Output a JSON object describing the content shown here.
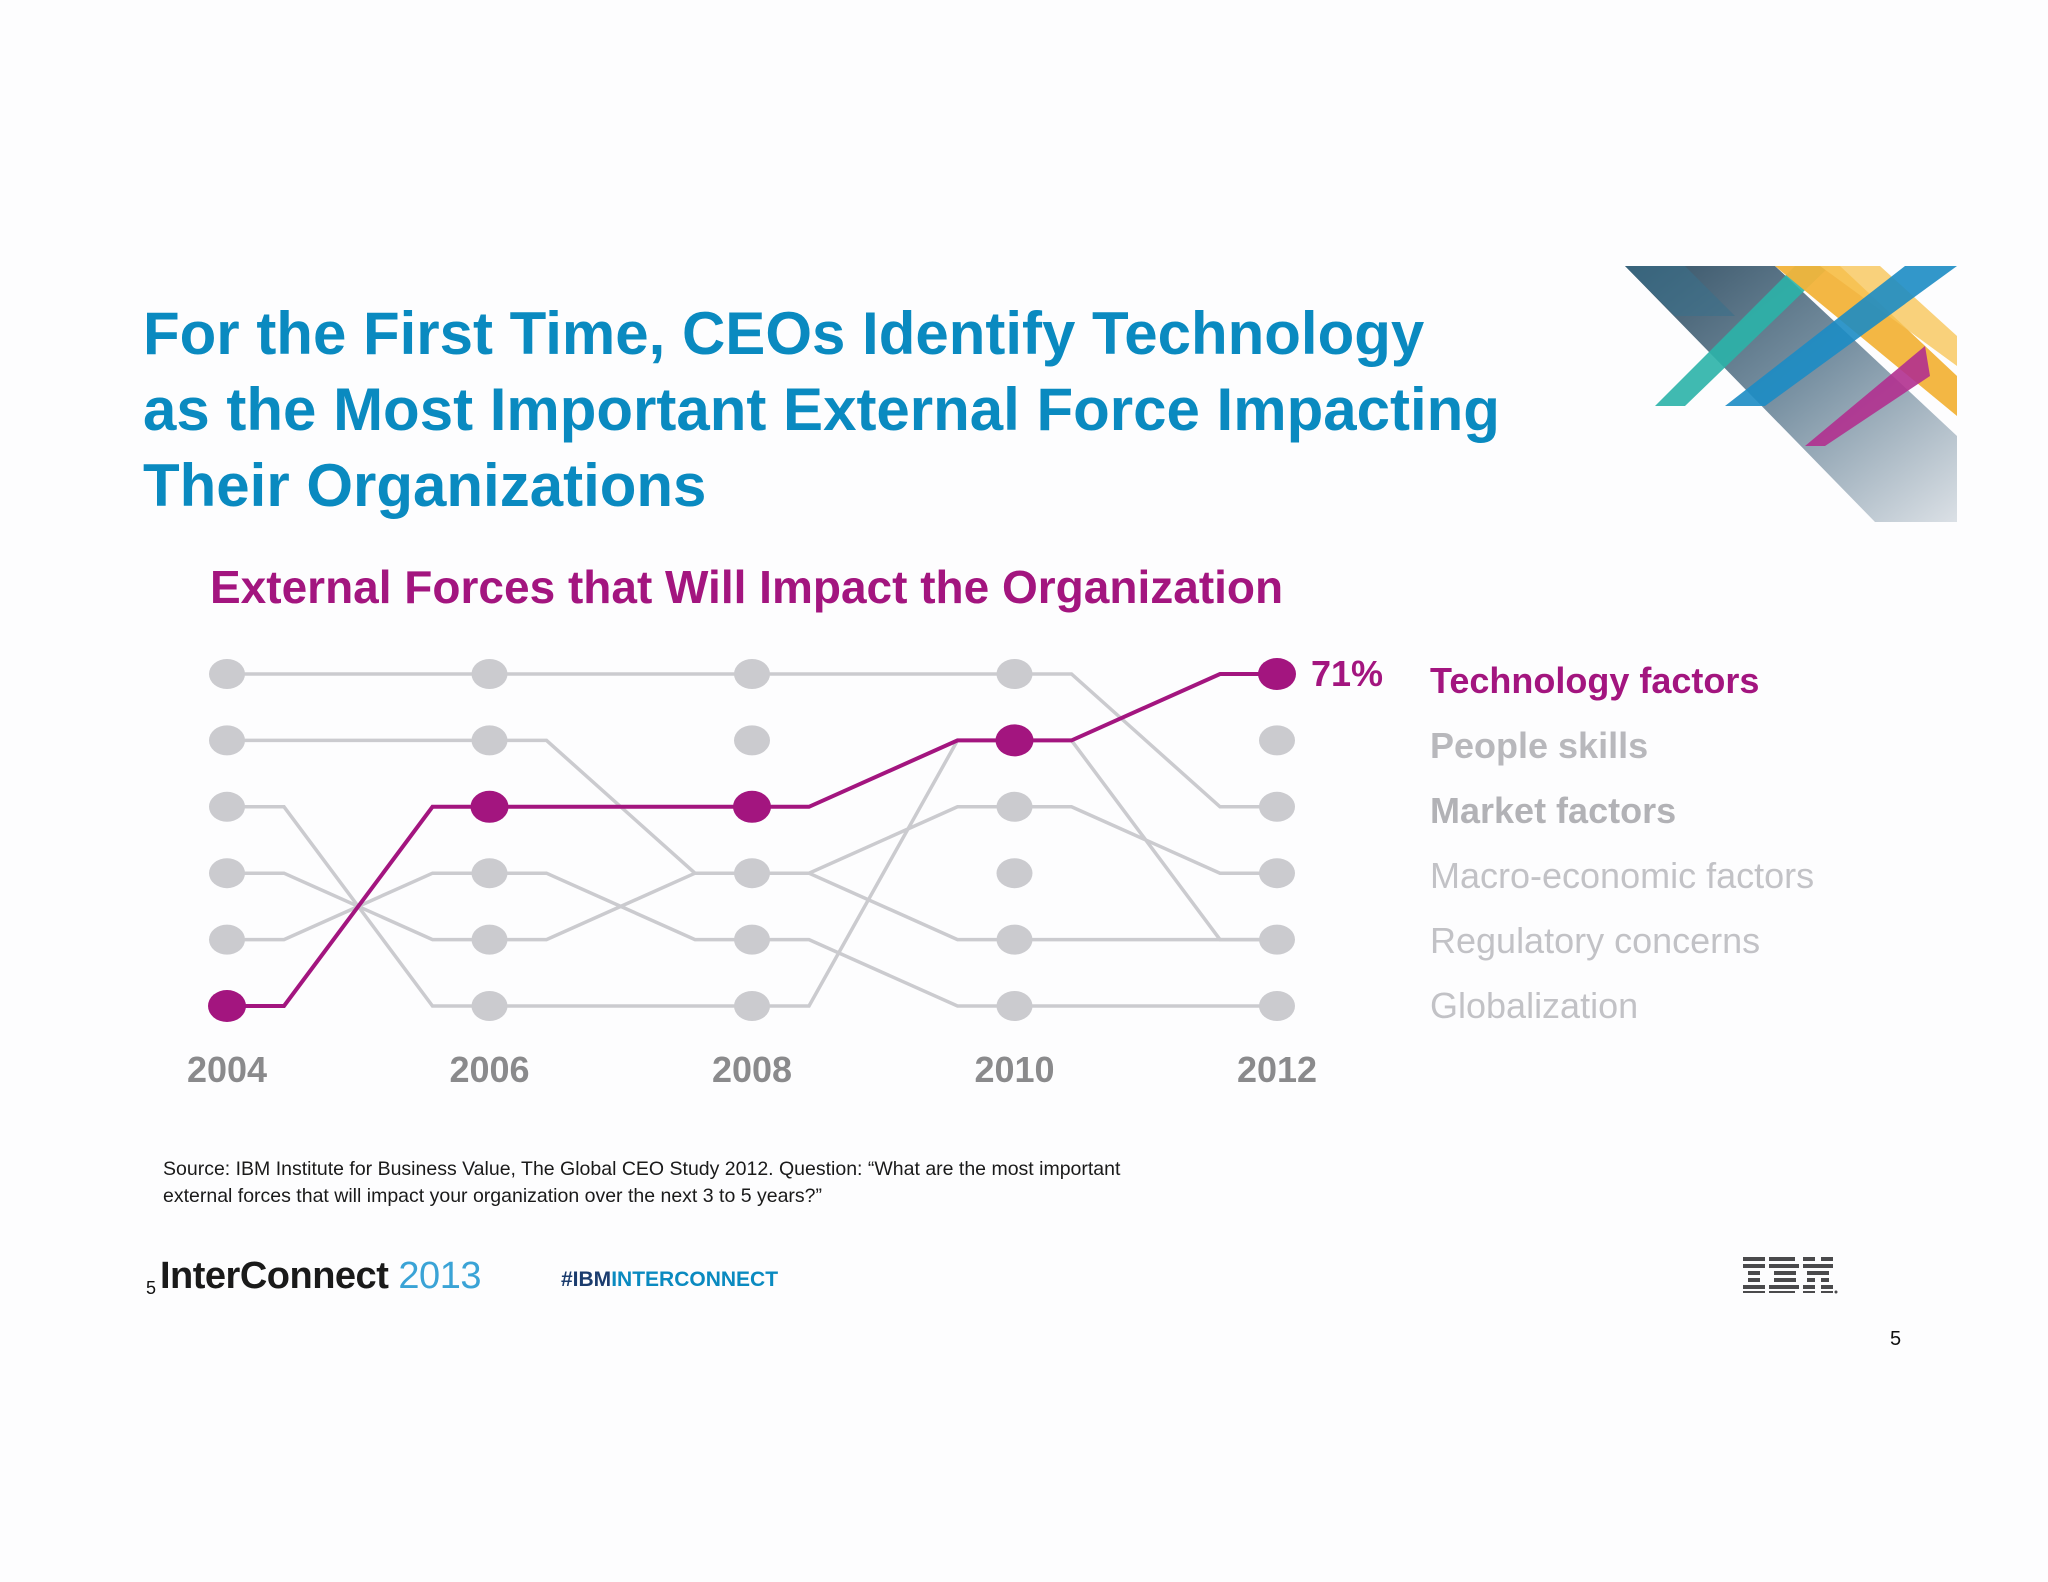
{
  "slide": {
    "title_lines": [
      "For the First Time, CEOs Identify Technology",
      "as the Most Important External Force Impacting",
      "Their Organizations"
    ],
    "source_text": "Source: IBM Institute for Business Value, The Global CEO Study 2012. Question: “What are the most important external forces that will impact your organization over the next 3 to 5 years?”",
    "page_number": "5",
    "footer": {
      "brand_name": "InterConnect",
      "brand_year": "2013",
      "hashtag_a": "#IBM",
      "hashtag_b": "INTERCONNECT",
      "page_number_small": "5",
      "logo": "ibm-logo"
    }
  },
  "chart_data": {
    "type": "line",
    "title": "External Forces that Will Impact the Organization",
    "x": [
      "2004",
      "2006",
      "2008",
      "2010",
      "2012"
    ],
    "y_description": "rank (1 = most important)",
    "ylim": [
      1,
      6
    ],
    "series": [
      {
        "name": "Technology factors",
        "values": [
          6,
          3,
          3,
          2,
          1
        ],
        "highlight": true
      },
      {
        "name": "People skills",
        "values": [
          null,
          null,
          null,
          null,
          2
        ],
        "highlight": false
      },
      {
        "name": "Market factors",
        "values": [
          1,
          1,
          1,
          1,
          3
        ],
        "highlight": false
      },
      {
        "name": "Macro-economic factors",
        "values": [
          null,
          null,
          null,
          null,
          4
        ],
        "highlight": false
      },
      {
        "name": "Regulatory concerns",
        "values": [
          null,
          null,
          null,
          null,
          5
        ],
        "highlight": false
      },
      {
        "name": "Globalization",
        "values": [
          null,
          null,
          null,
          null,
          6
        ],
        "highlight": false
      }
    ],
    "gray_lines": [
      [
        1,
        1,
        1,
        1,
        3
      ],
      [
        2,
        2,
        4,
        3,
        4
      ],
      [
        3,
        6,
        6,
        2,
        5
      ],
      [
        4,
        5,
        4,
        5,
        5
      ],
      [
        5,
        4,
        5,
        6,
        6
      ]
    ],
    "annotation": "71%",
    "legend_placement": "right",
    "colors": {
      "highlight": "#a3157f",
      "gray": "#cbcbcf",
      "legend_strong": "#a3157f",
      "legend_mid": "#b8b8bc",
      "legend_light": "#c2c2c6"
    }
  }
}
